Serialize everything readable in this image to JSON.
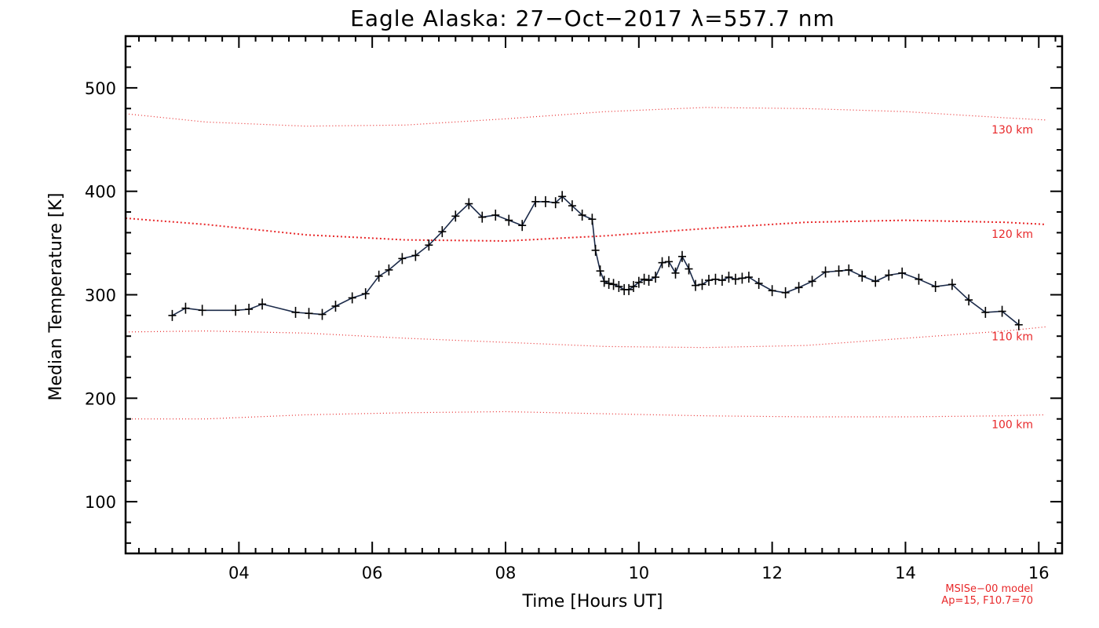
{
  "chart_data": {
    "type": "line",
    "title": "Eagle Alaska: 27−Oct−2017 λ=557.7 nm",
    "xlabel": "Time [Hours UT]",
    "ylabel": "Median Temperature [K]",
    "xlim": [
      2.3,
      16.35
    ],
    "ylim": [
      50,
      550
    ],
    "x_ticks": [
      4,
      6,
      8,
      10,
      12,
      14,
      16
    ],
    "x_tick_labels": [
      "04",
      "06",
      "08",
      "10",
      "12",
      "14",
      "16"
    ],
    "y_ticks": [
      100,
      200,
      300,
      400,
      500
    ],
    "y_tick_labels": [
      "100",
      "200",
      "300",
      "400",
      "500"
    ],
    "grid": false,
    "series": [
      {
        "color": "#1c2b4a",
        "marker": "plus",
        "x": [
          3.0,
          3.2,
          3.45,
          3.95,
          4.15,
          4.35,
          4.85,
          5.05,
          5.25,
          5.45,
          5.7,
          5.9,
          6.1,
          6.25,
          6.45,
          6.65,
          6.85,
          7.05,
          7.25,
          7.45,
          7.65,
          7.85,
          8.05,
          8.25,
          8.45,
          8.6,
          8.75,
          8.85,
          9.0,
          9.15,
          9.3,
          9.35,
          9.42,
          9.48,
          9.55,
          9.62,
          9.7,
          9.78,
          9.85,
          9.92,
          10.0,
          10.08,
          10.15,
          10.25,
          10.35,
          10.45,
          10.55,
          10.65,
          10.75,
          10.85,
          10.95,
          11.05,
          11.15,
          11.25,
          11.35,
          11.45,
          11.55,
          11.65,
          11.8,
          12.0,
          12.2,
          12.4,
          12.6,
          12.8,
          13.0,
          13.15,
          13.35,
          13.55,
          13.75,
          13.95,
          14.2,
          14.45,
          14.7,
          14.95,
          15.2,
          15.45,
          15.7
        ],
        "y": [
          280,
          287,
          285,
          285,
          286,
          291,
          283,
          282,
          281,
          289,
          297,
          301,
          318,
          324,
          335,
          338,
          348,
          361,
          376,
          388,
          375,
          377,
          372,
          367,
          390,
          390,
          389,
          395,
          386,
          377,
          373,
          343,
          323,
          313,
          311,
          310,
          308,
          305,
          305,
          308,
          312,
          315,
          314,
          317,
          331,
          332,
          321,
          337,
          325,
          309,
          310,
          314,
          315,
          314,
          317,
          315,
          316,
          317,
          311,
          304,
          302,
          307,
          313,
          322,
          323,
          324,
          318,
          313,
          319,
          321,
          315,
          308,
          310,
          295,
          283,
          284,
          271
        ]
      }
    ],
    "model_curves": [
      {
        "label": "100 km",
        "color": "#e8282a",
        "x": [
          2.3,
          3.5,
          5.0,
          6.5,
          8.0,
          9.5,
          11.0,
          12.5,
          14.0,
          15.5,
          16.1
        ],
        "y": [
          180,
          180,
          184,
          186,
          187,
          185,
          183,
          182,
          182,
          183,
          184
        ]
      },
      {
        "label": "110 km",
        "color": "#e8282a",
        "x": [
          2.3,
          3.5,
          5.0,
          6.5,
          8.0,
          9.5,
          11.0,
          12.5,
          14.0,
          15.5,
          16.1
        ],
        "y": [
          264,
          265,
          263,
          258,
          254,
          250,
          249,
          251,
          258,
          265,
          269
        ]
      },
      {
        "label": "120 km",
        "color": "#e8282a",
        "x": [
          2.3,
          3.5,
          5.0,
          6.5,
          8.0,
          9.5,
          11.0,
          12.5,
          14.0,
          15.5,
          16.1
        ],
        "y": [
          374,
          368,
          358,
          353,
          352,
          357,
          364,
          370,
          372,
          370,
          368
        ]
      },
      {
        "label": "130 km",
        "color": "#e8282a",
        "x": [
          2.3,
          3.5,
          5.0,
          6.5,
          8.0,
          9.5,
          11.0,
          12.5,
          14.0,
          15.5,
          16.1
        ],
        "y": [
          475,
          467,
          463,
          464,
          470,
          477,
          481,
          480,
          477,
          471,
          469
        ]
      }
    ],
    "annotations": [
      "MSISe−00 model",
      "Ap=15, F10.7=70"
    ]
  }
}
